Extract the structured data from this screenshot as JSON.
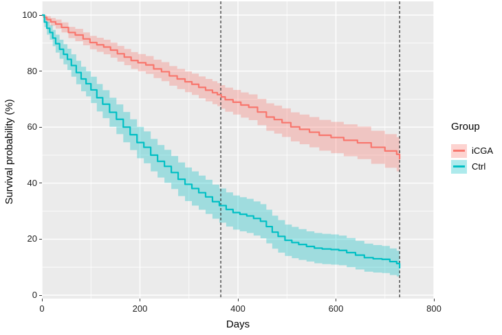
{
  "chart_data": {
    "type": "line",
    "subtype": "kaplan-meier-step-curves-with-confidence-bands",
    "title": "",
    "xlabel": "Days",
    "ylabel": "Survival probability (%)",
    "legend_title": "Group",
    "legend_position": "right",
    "xlim": [
      0,
      800
    ],
    "ylim": [
      0,
      100
    ],
    "xticks": [
      0,
      200,
      400,
      600,
      800
    ],
    "yticks": [
      0,
      20,
      40,
      60,
      80,
      100
    ],
    "grid": "white major and minor gridlines on gray panel",
    "panel_background": "#EBEBEB",
    "grid_color": "#FFFFFF",
    "tick_color": "#333333",
    "vline_color": "#2B2B2B",
    "reference_lines_days": [
      365,
      730
    ],
    "band_opacity": 0.32,
    "point_format": [
      "day",
      "survival_pct",
      "ci_lower_pct",
      "ci_upper_pct"
    ],
    "series": [
      {
        "name": "iCGA",
        "color": "#F8766D",
        "points": [
          [
            0,
            100,
            100,
            100
          ],
          [
            4,
            99.2,
            98.2,
            100
          ],
          [
            10,
            98.4,
            97.2,
            99.6
          ],
          [
            18,
            97.6,
            96.2,
            99.0
          ],
          [
            28,
            96.8,
            95.2,
            98.4
          ],
          [
            40,
            95.6,
            93.8,
            97.4
          ],
          [
            54,
            93.8,
            91.8,
            95.8
          ],
          [
            68,
            92.9,
            90.7,
            95.1
          ],
          [
            84,
            91.5,
            89.2,
            93.8
          ],
          [
            98,
            90.2,
            87.8,
            92.6
          ],
          [
            112,
            89.4,
            86.9,
            91.9
          ],
          [
            126,
            88.6,
            86.0,
            91.2
          ],
          [
            140,
            87.5,
            84.8,
            90.2
          ],
          [
            154,
            86.2,
            83.4,
            89.0
          ],
          [
            168,
            85.0,
            82.1,
            87.9
          ],
          [
            182,
            83.8,
            80.8,
            86.8
          ],
          [
            196,
            83.0,
            79.9,
            86.1
          ],
          [
            212,
            82.2,
            79.0,
            85.4
          ],
          [
            228,
            80.8,
            77.5,
            84.1
          ],
          [
            244,
            79.8,
            76.4,
            83.2
          ],
          [
            260,
            78.3,
            74.8,
            81.8
          ],
          [
            276,
            77.2,
            73.6,
            80.8
          ],
          [
            292,
            76.2,
            72.5,
            79.9
          ],
          [
            306,
            75.3,
            71.5,
            79.1
          ],
          [
            320,
            74.2,
            70.3,
            78.1
          ],
          [
            334,
            73.2,
            69.2,
            77.2
          ],
          [
            348,
            72.3,
            68.2,
            76.4
          ],
          [
            358,
            71.6,
            67.5,
            75.7
          ],
          [
            366,
            70.8,
            66.6,
            75.0
          ],
          [
            374,
            69.8,
            65.5,
            74.1
          ],
          [
            390,
            68.9,
            64.5,
            73.3
          ],
          [
            406,
            67.9,
            63.4,
            72.4
          ],
          [
            422,
            67.1,
            62.5,
            71.7
          ],
          [
            440,
            65.4,
            60.7,
            70.1
          ],
          [
            458,
            63.6,
            58.7,
            68.5
          ],
          [
            474,
            62.7,
            57.7,
            67.7
          ],
          [
            490,
            61.6,
            56.5,
            66.7
          ],
          [
            508,
            60.1,
            54.9,
            65.3
          ],
          [
            526,
            59.2,
            53.9,
            64.5
          ],
          [
            546,
            58.2,
            52.8,
            63.6
          ],
          [
            566,
            57.1,
            51.6,
            62.6
          ],
          [
            590,
            56.3,
            50.7,
            61.9
          ],
          [
            616,
            55.3,
            49.6,
            61.0
          ],
          [
            644,
            54.4,
            48.6,
            60.2
          ],
          [
            672,
            52.8,
            46.9,
            58.7
          ],
          [
            700,
            51.5,
            45.5,
            57.5
          ],
          [
            724,
            50.3,
            44.2,
            56.4
          ],
          [
            730,
            48.5,
            42.3,
            54.7
          ]
        ]
      },
      {
        "name": "Ctrl",
        "color": "#00BFC4",
        "points": [
          [
            0,
            100,
            100,
            100
          ],
          [
            5,
            97.5,
            95.7,
            99.3
          ],
          [
            10,
            95.3,
            93.0,
            97.6
          ],
          [
            16,
            93.8,
            91.2,
            96.4
          ],
          [
            22,
            91.8,
            88.9,
            94.7
          ],
          [
            28,
            89.8,
            86.6,
            93.0
          ],
          [
            36,
            87.8,
            84.4,
            91.2
          ],
          [
            44,
            86.0,
            82.4,
            89.6
          ],
          [
            52,
            84.2,
            80.4,
            88.0
          ],
          [
            60,
            82.0,
            78.0,
            86.0
          ],
          [
            70,
            79.5,
            75.3,
            83.7
          ],
          [
            80,
            77.2,
            72.8,
            81.6
          ],
          [
            90,
            75.5,
            71.0,
            80.0
          ],
          [
            100,
            73.3,
            68.6,
            78.0
          ],
          [
            112,
            70.5,
            65.6,
            75.4
          ],
          [
            124,
            68.2,
            63.2,
            73.2
          ],
          [
            138,
            65.3,
            60.1,
            70.5
          ],
          [
            152,
            62.8,
            57.5,
            68.1
          ],
          [
            166,
            60.0,
            54.6,
            65.4
          ],
          [
            180,
            57.3,
            51.8,
            62.8
          ],
          [
            194,
            54.5,
            48.9,
            60.1
          ],
          [
            208,
            52.8,
            47.1,
            58.5
          ],
          [
            222,
            50.0,
            44.2,
            55.8
          ],
          [
            236,
            47.8,
            42.0,
            53.6
          ],
          [
            250,
            46.0,
            40.1,
            51.9
          ],
          [
            264,
            43.8,
            37.9,
            49.7
          ],
          [
            278,
            41.4,
            35.4,
            47.4
          ],
          [
            292,
            39.6,
            33.6,
            45.6
          ],
          [
            306,
            38.1,
            32.0,
            44.2
          ],
          [
            320,
            36.6,
            30.5,
            42.7
          ],
          [
            334,
            35.1,
            29.0,
            41.2
          ],
          [
            348,
            33.4,
            27.3,
            39.5
          ],
          [
            362,
            32.0,
            25.9,
            38.1
          ],
          [
            376,
            30.6,
            24.5,
            36.7
          ],
          [
            390,
            29.5,
            23.4,
            35.6
          ],
          [
            404,
            28.9,
            22.8,
            35.0
          ],
          [
            418,
            28.3,
            22.2,
            34.4
          ],
          [
            432,
            27.4,
            21.3,
            33.5
          ],
          [
            446,
            26.4,
            20.3,
            32.5
          ],
          [
            458,
            24.5,
            18.5,
            30.5
          ],
          [
            470,
            22.5,
            16.6,
            28.4
          ],
          [
            482,
            21.0,
            15.2,
            26.8
          ],
          [
            496,
            19.6,
            14.0,
            25.2
          ],
          [
            510,
            18.8,
            13.2,
            24.4
          ],
          [
            524,
            18.1,
            12.6,
            23.6
          ],
          [
            540,
            17.4,
            12.0,
            22.8
          ],
          [
            556,
            16.8,
            11.4,
            22.2
          ],
          [
            572,
            16.5,
            11.1,
            21.9
          ],
          [
            590,
            16.3,
            10.9,
            21.7
          ],
          [
            606,
            16.0,
            10.7,
            21.3
          ],
          [
            622,
            15.2,
            10.0,
            20.4
          ],
          [
            640,
            14.3,
            9.2,
            19.4
          ],
          [
            658,
            13.4,
            8.4,
            18.4
          ],
          [
            676,
            13.0,
            8.1,
            17.9
          ],
          [
            694,
            12.8,
            7.9,
            17.6
          ],
          [
            710,
            12.0,
            7.2,
            16.7
          ],
          [
            724,
            11.3,
            6.7,
            15.9
          ],
          [
            730,
            9.6,
            5.3,
            13.9
          ]
        ]
      }
    ]
  }
}
